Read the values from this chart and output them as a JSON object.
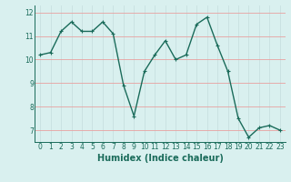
{
  "x": [
    0,
    1,
    2,
    3,
    4,
    5,
    6,
    7,
    8,
    9,
    10,
    11,
    12,
    13,
    14,
    15,
    16,
    17,
    18,
    19,
    20,
    21,
    22,
    23
  ],
  "y": [
    10.2,
    10.3,
    11.2,
    11.6,
    11.2,
    11.2,
    11.6,
    11.1,
    8.9,
    7.6,
    9.5,
    10.2,
    10.8,
    10.0,
    10.2,
    11.5,
    11.8,
    10.6,
    9.5,
    7.5,
    6.7,
    7.1,
    7.2,
    7.0
  ],
  "line_color": "#1a6b5a",
  "marker": "+",
  "marker_size": 3,
  "bg_color": "#d9f0ef",
  "grid_color_h": "#e8a0a0",
  "grid_color_v": "#c8e0e0",
  "xlabel": "Humidex (Indice chaleur)",
  "xlim": [
    -0.5,
    23.5
  ],
  "ylim": [
    6.5,
    12.3
  ],
  "yticks": [
    7,
    8,
    9,
    10,
    11,
    12
  ],
  "xticks": [
    0,
    1,
    2,
    3,
    4,
    5,
    6,
    7,
    8,
    9,
    10,
    11,
    12,
    13,
    14,
    15,
    16,
    17,
    18,
    19,
    20,
    21,
    22,
    23
  ],
  "tick_fontsize": 5.5,
  "xlabel_fontsize": 7,
  "line_width": 1.0
}
